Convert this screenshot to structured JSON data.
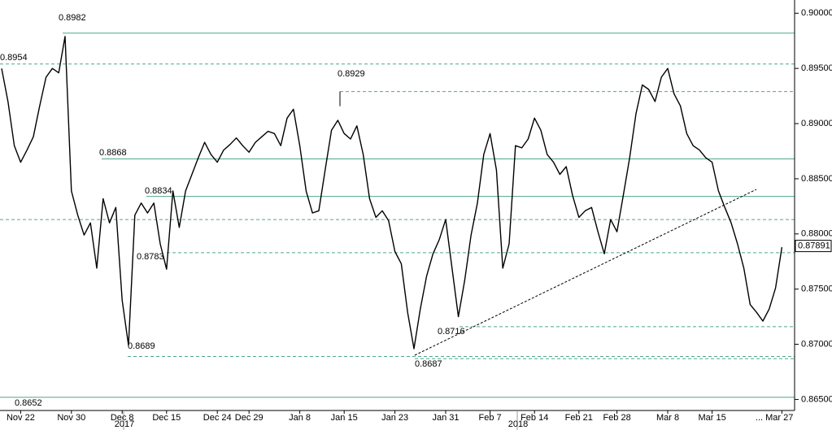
{
  "chart_data": {
    "type": "line",
    "categories": [
      null,
      null,
      null,
      "Nov 22",
      null,
      null,
      null,
      null,
      null,
      null,
      null,
      "Nov 30",
      null,
      null,
      null,
      null,
      null,
      null,
      null,
      "Dec 8",
      null,
      null,
      null,
      null,
      null,
      null,
      "Dec 15",
      null,
      null,
      null,
      null,
      null,
      null,
      null,
      "Dec 24",
      null,
      null,
      null,
      null,
      "Dec 29",
      null,
      null,
      null,
      null,
      null,
      null,
      null,
      "Jan 8",
      null,
      null,
      null,
      null,
      null,
      null,
      "Jan 15",
      null,
      null,
      null,
      null,
      null,
      null,
      null,
      "Jan 23",
      null,
      null,
      null,
      null,
      null,
      null,
      null,
      "Jan 31",
      null,
      null,
      null,
      null,
      null,
      null,
      "Feb 7",
      null,
      null,
      null,
      null,
      null,
      null,
      "Feb 14",
      null,
      null,
      null,
      null,
      null,
      null,
      "Feb 21",
      null,
      null,
      null,
      null,
      null,
      "Feb 28",
      null,
      null,
      null,
      null,
      null,
      null,
      null,
      "Mar 8",
      null,
      null,
      null,
      null,
      null,
      null,
      "Mar 15",
      null,
      null,
      null,
      null,
      null,
      null,
      null,
      null,
      null,
      null,
      "... Mar 27"
    ],
    "series": [
      {
        "color": "#000000",
        "values": [
          0.895,
          0.892,
          0.888,
          0.8865,
          0.8876,
          0.8888,
          0.8916,
          0.8942,
          0.895,
          0.8946,
          0.8979,
          0.8839,
          0.8817,
          0.8799,
          0.881,
          0.8769,
          0.8832,
          0.881,
          0.8824,
          0.874,
          0.8699,
          0.8817,
          0.8828,
          0.8819,
          0.8828,
          0.8791,
          0.8768,
          0.8839,
          0.8806,
          0.8839,
          0.8854,
          0.8869,
          0.8883,
          0.8872,
          0.8865,
          0.8876,
          0.8881,
          0.8887,
          0.888,
          0.8874,
          0.8883,
          0.8888,
          0.8893,
          0.8891,
          0.888,
          0.8905,
          0.8913,
          0.888,
          0.8839,
          0.8819,
          0.8821,
          0.8858,
          0.8894,
          0.8903,
          0.8891,
          0.8886,
          0.8898,
          0.8872,
          0.8832,
          0.8815,
          0.8821,
          0.8812,
          0.8784,
          0.8773,
          0.8729,
          0.8696,
          0.8732,
          0.8762,
          0.8782,
          0.8795,
          0.8813,
          0.8769,
          0.8725,
          0.8758,
          0.8799,
          0.8828,
          0.8872,
          0.8891,
          0.8858,
          0.8769,
          0.8791,
          0.888,
          0.8878,
          0.8886,
          0.8905,
          0.8894,
          0.8872,
          0.8865,
          0.8854,
          0.8861,
          0.8835,
          0.8815,
          0.8821,
          0.8824,
          0.8802,
          0.8782,
          0.8813,
          0.8802,
          0.8835,
          0.8869,
          0.8909,
          0.8935,
          0.8931,
          0.892,
          0.8942,
          0.895,
          0.8927,
          0.8916,
          0.8891,
          0.888,
          0.8876,
          0.8869,
          0.8865,
          0.8839,
          0.8824,
          0.881,
          0.8791,
          0.8769,
          0.8736,
          0.8729,
          0.8721,
          0.8732,
          0.8751,
          0.8788
        ]
      }
    ],
    "years": [
      "2017",
      "2018"
    ],
    "ylim": [
      0.864,
      0.9012
    ],
    "yticks": [
      {
        "value": 0.865,
        "label": "0.86500"
      },
      {
        "value": 0.87,
        "label": "0.87000"
      },
      {
        "value": 0.875,
        "label": "0.87500"
      },
      {
        "value": 0.88,
        "label": "0.88000"
      },
      {
        "value": 0.885,
        "label": "0.88500"
      },
      {
        "value": 0.89,
        "label": "0.89000"
      },
      {
        "value": 0.895,
        "label": "0.89500"
      },
      {
        "value": 0.9,
        "label": "0.90000"
      }
    ],
    "last_price": {
      "value": 0.87891,
      "label": "0.87891"
    },
    "level_color": "#4fa88a",
    "levels": [
      {
        "value": 0.8982,
        "label": "0.8982",
        "style": "solid"
      },
      {
        "value": 0.8954,
        "label": "0.8954",
        "style": "dashed"
      },
      {
        "value": 0.8929,
        "label": "0.8929",
        "style": "dashed"
      },
      {
        "value": 0.8868,
        "label": "0.8868",
        "style": "solid"
      },
      {
        "value": 0.8834,
        "label": "0.8834",
        "style": "solid"
      },
      {
        "value": 0.8813,
        "style": "dashed"
      },
      {
        "value": 0.8783,
        "label": "0.8783",
        "style": "dashed"
      },
      {
        "value": 0.8716,
        "label": "0.8716",
        "style": "dashed"
      },
      {
        "value": 0.8689,
        "label": "0.8689",
        "style": "dashed"
      },
      {
        "value": 0.8687,
        "label": "0.8687",
        "style": "dashed"
      },
      {
        "value": 0.8652,
        "label": "0.8652",
        "style": "solid"
      }
    ]
  }
}
